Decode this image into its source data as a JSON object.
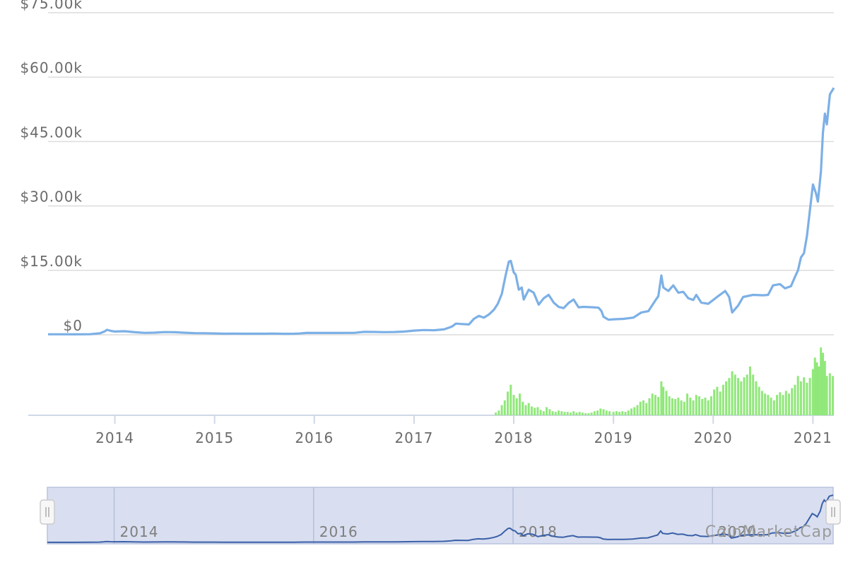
{
  "chart_data": [
    {
      "type": "line",
      "title": "",
      "xlabel": "",
      "ylabel": "",
      "ylim": [
        0,
        75000
      ],
      "y_ticks": [
        "$0",
        "$15.00k",
        "$30.00k",
        "$45.00k",
        "$60.00k",
        "$75.00k"
      ],
      "y_tick_values": [
        0,
        15000,
        30000,
        45000,
        60000,
        75000
      ],
      "x_ticks": [
        "2014",
        "2015",
        "2016",
        "2017",
        "2018",
        "2019",
        "2020",
        "2021"
      ],
      "x_tick_values": [
        2014,
        2015,
        2016,
        2017,
        2018,
        2019,
        2020,
        2021
      ],
      "xlim": [
        2013.33,
        2021.21
      ],
      "grid": true,
      "line_color": "#7cb0e6",
      "volume_color": "#90e87a",
      "series": [
        {
          "values": [
            [
              2013.33,
              117
            ],
            [
              2013.45,
              110
            ],
            [
              2013.6,
              100
            ],
            [
              2013.75,
              130
            ],
            [
              2013.85,
              350
            ],
            [
              2013.9,
              800
            ],
            [
              2013.92,
              1150
            ],
            [
              2013.96,
              900
            ],
            [
              2014.0,
              760
            ],
            [
              2014.1,
              820
            ],
            [
              2014.2,
              600
            ],
            [
              2014.3,
              450
            ],
            [
              2014.4,
              500
            ],
            [
              2014.5,
              620
            ],
            [
              2014.6,
              590
            ],
            [
              2014.7,
              480
            ],
            [
              2014.8,
              380
            ],
            [
              2014.9,
              370
            ],
            [
              2015.0,
              315
            ],
            [
              2015.1,
              240
            ],
            [
              2015.2,
              260
            ],
            [
              2015.3,
              240
            ],
            [
              2015.5,
              250
            ],
            [
              2015.6,
              280
            ],
            [
              2015.7,
              235
            ],
            [
              2015.8,
              240
            ],
            [
              2015.85,
              300
            ],
            [
              2015.92,
              420
            ],
            [
              2016.0,
              430
            ],
            [
              2016.2,
              420
            ],
            [
              2016.4,
              450
            ],
            [
              2016.5,
              680
            ],
            [
              2016.6,
              650
            ],
            [
              2016.7,
              610
            ],
            [
              2016.8,
              640
            ],
            [
              2016.9,
              740
            ],
            [
              2017.0,
              970
            ],
            [
              2017.1,
              1100
            ],
            [
              2017.2,
              1050
            ],
            [
              2017.3,
              1250
            ],
            [
              2017.38,
              1900
            ],
            [
              2017.42,
              2600
            ],
            [
              2017.48,
              2500
            ],
            [
              2017.55,
              2400
            ],
            [
              2017.6,
              3700
            ],
            [
              2017.65,
              4400
            ],
            [
              2017.7,
              4000
            ],
            [
              2017.75,
              4700
            ],
            [
              2017.8,
              5800
            ],
            [
              2017.84,
              7200
            ],
            [
              2017.88,
              9500
            ],
            [
              2017.92,
              14000
            ],
            [
              2017.95,
              17000
            ],
            [
              2017.97,
              17200
            ],
            [
              2018.0,
              14500
            ],
            [
              2018.02,
              14000
            ],
            [
              2018.05,
              10500
            ],
            [
              2018.08,
              11000
            ],
            [
              2018.1,
              8200
            ],
            [
              2018.15,
              10500
            ],
            [
              2018.2,
              9800
            ],
            [
              2018.25,
              7000
            ],
            [
              2018.3,
              8500
            ],
            [
              2018.35,
              9300
            ],
            [
              2018.4,
              7500
            ],
            [
              2018.45,
              6500
            ],
            [
              2018.5,
              6200
            ],
            [
              2018.55,
              7400
            ],
            [
              2018.6,
              8200
            ],
            [
              2018.65,
              6400
            ],
            [
              2018.7,
              6500
            ],
            [
              2018.8,
              6400
            ],
            [
              2018.85,
              6300
            ],
            [
              2018.88,
              5500
            ],
            [
              2018.9,
              4200
            ],
            [
              2018.95,
              3500
            ],
            [
              2019.0,
              3600
            ],
            [
              2019.1,
              3700
            ],
            [
              2019.2,
              4000
            ],
            [
              2019.28,
              5200
            ],
            [
              2019.35,
              5500
            ],
            [
              2019.42,
              8000
            ],
            [
              2019.45,
              9000
            ],
            [
              2019.48,
              13800
            ],
            [
              2019.5,
              11000
            ],
            [
              2019.55,
              10200
            ],
            [
              2019.6,
              11500
            ],
            [
              2019.65,
              9800
            ],
            [
              2019.7,
              10000
            ],
            [
              2019.75,
              8500
            ],
            [
              2019.8,
              8100
            ],
            [
              2019.83,
              9300
            ],
            [
              2019.88,
              7500
            ],
            [
              2019.95,
              7200
            ],
            [
              2020.05,
              9000
            ],
            [
              2020.12,
              10200
            ],
            [
              2020.16,
              8800
            ],
            [
              2020.19,
              5200
            ],
            [
              2020.25,
              6800
            ],
            [
              2020.3,
              8800
            ],
            [
              2020.4,
              9300
            ],
            [
              2020.5,
              9200
            ],
            [
              2020.55,
              9300
            ],
            [
              2020.6,
              11500
            ],
            [
              2020.67,
              11800
            ],
            [
              2020.72,
              10800
            ],
            [
              2020.78,
              11300
            ],
            [
              2020.82,
              13500
            ],
            [
              2020.85,
              15000
            ],
            [
              2020.88,
              18000
            ],
            [
              2020.91,
              19000
            ],
            [
              2020.94,
              23000
            ],
            [
              2020.97,
              29000
            ],
            [
              2021.0,
              35000
            ],
            [
              2021.03,
              33000
            ],
            [
              2021.05,
              31000
            ],
            [
              2021.08,
              38000
            ],
            [
              2021.1,
              47000
            ],
            [
              2021.12,
              51500
            ],
            [
              2021.14,
              49000
            ],
            [
              2021.17,
              56000
            ],
            [
              2021.21,
              57500
            ]
          ]
        }
      ],
      "volume_bars": [
        [
          2017.82,
          0.04
        ],
        [
          2017.85,
          0.07
        ],
        [
          2017.88,
          0.15
        ],
        [
          2017.91,
          0.22
        ],
        [
          2017.94,
          0.35
        ],
        [
          2017.97,
          0.45
        ],
        [
          2018.0,
          0.3
        ],
        [
          2018.03,
          0.25
        ],
        [
          2018.06,
          0.32
        ],
        [
          2018.09,
          0.2
        ],
        [
          2018.12,
          0.15
        ],
        [
          2018.15,
          0.18
        ],
        [
          2018.18,
          0.13
        ],
        [
          2018.21,
          0.11
        ],
        [
          2018.24,
          0.12
        ],
        [
          2018.27,
          0.08
        ],
        [
          2018.3,
          0.06
        ],
        [
          2018.33,
          0.12
        ],
        [
          2018.36,
          0.09
        ],
        [
          2018.39,
          0.06
        ],
        [
          2018.42,
          0.05
        ],
        [
          2018.45,
          0.07
        ],
        [
          2018.48,
          0.06
        ],
        [
          2018.51,
          0.05
        ],
        [
          2018.54,
          0.05
        ],
        [
          2018.57,
          0.04
        ],
        [
          2018.6,
          0.06
        ],
        [
          2018.63,
          0.04
        ],
        [
          2018.66,
          0.05
        ],
        [
          2018.69,
          0.04
        ],
        [
          2018.72,
          0.03
        ],
        [
          2018.75,
          0.03
        ],
        [
          2018.78,
          0.04
        ],
        [
          2018.81,
          0.06
        ],
        [
          2018.84,
          0.07
        ],
        [
          2018.87,
          0.1
        ],
        [
          2018.9,
          0.09
        ],
        [
          2018.93,
          0.07
        ],
        [
          2018.96,
          0.06
        ],
        [
          2019.0,
          0.05
        ],
        [
          2019.03,
          0.06
        ],
        [
          2019.06,
          0.05
        ],
        [
          2019.09,
          0.06
        ],
        [
          2019.12,
          0.05
        ],
        [
          2019.15,
          0.07
        ],
        [
          2019.18,
          0.1
        ],
        [
          2019.21,
          0.12
        ],
        [
          2019.24,
          0.15
        ],
        [
          2019.27,
          0.2
        ],
        [
          2019.3,
          0.22
        ],
        [
          2019.33,
          0.18
        ],
        [
          2019.36,
          0.25
        ],
        [
          2019.39,
          0.32
        ],
        [
          2019.42,
          0.3
        ],
        [
          2019.45,
          0.27
        ],
        [
          2019.48,
          0.5
        ],
        [
          2019.5,
          0.42
        ],
        [
          2019.53,
          0.36
        ],
        [
          2019.56,
          0.28
        ],
        [
          2019.59,
          0.25
        ],
        [
          2019.62,
          0.24
        ],
        [
          2019.65,
          0.26
        ],
        [
          2019.68,
          0.22
        ],
        [
          2019.71,
          0.2
        ],
        [
          2019.74,
          0.32
        ],
        [
          2019.77,
          0.26
        ],
        [
          2019.8,
          0.22
        ],
        [
          2019.83,
          0.3
        ],
        [
          2019.86,
          0.28
        ],
        [
          2019.89,
          0.24
        ],
        [
          2019.92,
          0.26
        ],
        [
          2019.95,
          0.22
        ],
        [
          2019.98,
          0.28
        ],
        [
          2020.01,
          0.38
        ],
        [
          2020.04,
          0.42
        ],
        [
          2020.07,
          0.35
        ],
        [
          2020.1,
          0.45
        ],
        [
          2020.13,
          0.5
        ],
        [
          2020.16,
          0.55
        ],
        [
          2020.19,
          0.65
        ],
        [
          2020.22,
          0.6
        ],
        [
          2020.25,
          0.55
        ],
        [
          2020.28,
          0.5
        ],
        [
          2020.31,
          0.56
        ],
        [
          2020.34,
          0.6
        ],
        [
          2020.37,
          0.72
        ],
        [
          2020.4,
          0.6
        ],
        [
          2020.43,
          0.5
        ],
        [
          2020.46,
          0.42
        ],
        [
          2020.49,
          0.36
        ],
        [
          2020.52,
          0.32
        ],
        [
          2020.55,
          0.3
        ],
        [
          2020.58,
          0.26
        ],
        [
          2020.61,
          0.22
        ],
        [
          2020.64,
          0.3
        ],
        [
          2020.67,
          0.34
        ],
        [
          2020.7,
          0.3
        ],
        [
          2020.73,
          0.36
        ],
        [
          2020.76,
          0.32
        ],
        [
          2020.79,
          0.4
        ],
        [
          2020.82,
          0.45
        ],
        [
          2020.85,
          0.58
        ],
        [
          2020.88,
          0.5
        ],
        [
          2020.91,
          0.56
        ],
        [
          2020.94,
          0.48
        ],
        [
          2020.97,
          0.55
        ],
        [
          2021.0,
          0.68
        ],
        [
          2021.02,
          0.85
        ],
        [
          2021.04,
          0.78
        ],
        [
          2021.06,
          0.72
        ],
        [
          2021.08,
          1.0
        ],
        [
          2021.1,
          0.92
        ],
        [
          2021.12,
          0.8
        ],
        [
          2021.14,
          0.58
        ],
        [
          2021.17,
          0.62
        ],
        [
          2021.2,
          0.58
        ]
      ]
    },
    {
      "type": "line",
      "title": "",
      "xlabel": "",
      "ylabel": "",
      "x_ticks": [
        "2014",
        "2016",
        "2018",
        "2020"
      ],
      "x_tick_values": [
        2014,
        2016,
        2018,
        2020
      ],
      "xlim": [
        2013.33,
        2021.21
      ],
      "ylim": [
        0,
        60000
      ],
      "line_color": "#3a5fa8",
      "fill_color": "#d9dff0"
    }
  ],
  "credit": "CoinMarketCap"
}
